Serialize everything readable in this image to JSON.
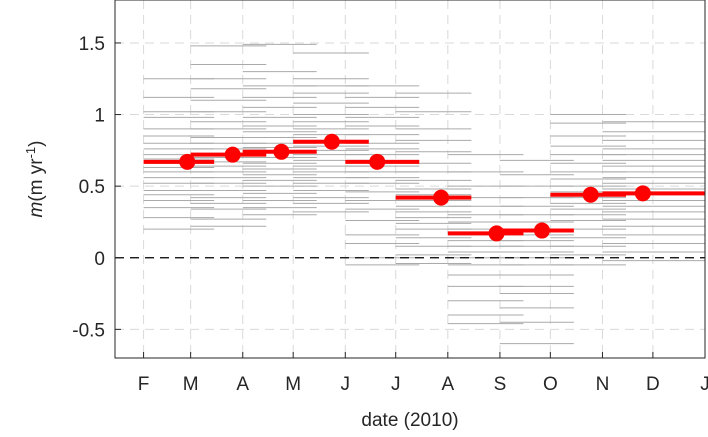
{
  "chart_data": {
    "type": "scatter",
    "xlabel": "date (2010)",
    "ylabel_var": "m",
    "ylabel_units": "(m yr",
    "ylabel_exp": "-1",
    "ylabel_close": ")",
    "ylim": [
      -0.7,
      1.8
    ],
    "yticks": [
      -0.5,
      0,
      0.5,
      1,
      1.5
    ],
    "ytick_labels": [
      "-0.5",
      "0",
      "0.5",
      "1",
      "1.5"
    ],
    "xlim": [
      "2010-01-15",
      "2011-01-01"
    ],
    "xticks": [
      "2010-02-01",
      "2010-03-01",
      "2010-04-01",
      "2010-05-01",
      "2010-06-01",
      "2010-07-01",
      "2010-08-01",
      "2010-09-01",
      "2010-10-01",
      "2010-11-01",
      "2010-12-01",
      "2011-01-01"
    ],
    "xtick_labels": [
      "F",
      "M",
      "A",
      "M",
      "J",
      "J",
      "A",
      "S",
      "O",
      "N",
      "D",
      "J"
    ],
    "grid": true,
    "zero_line": 0,
    "colors": {
      "mean": "#ff0000",
      "background": "#aaaaaa",
      "grid": "#d9d9d9"
    },
    "means": [
      {
        "x": "2010-02-27",
        "y": 0.67,
        "x_start": "2010-02-01",
        "x_end": "2010-03-15"
      },
      {
        "x": "2010-03-26",
        "y": 0.72,
        "x_start": "2010-03-01",
        "x_end": "2010-04-15"
      },
      {
        "x": "2010-04-24",
        "y": 0.74,
        "x_start": "2010-04-01",
        "x_end": "2010-05-15"
      },
      {
        "x": "2010-05-24",
        "y": 0.81,
        "x_start": "2010-05-01",
        "x_end": "2010-06-15"
      },
      {
        "x": "2010-06-20",
        "y": 0.67,
        "x_start": "2010-06-01",
        "x_end": "2010-07-15"
      },
      {
        "x": "2010-07-28",
        "y": 0.42,
        "x_start": "2010-07-01",
        "x_end": "2010-08-15"
      },
      {
        "x": "2010-08-30",
        "y": 0.17,
        "x_start": "2010-08-01",
        "x_end": "2010-09-15"
      },
      {
        "x": "2010-09-26",
        "y": 0.19,
        "x_start": "2010-09-01",
        "x_end": "2010-10-15"
      },
      {
        "x": "2010-10-25",
        "y": 0.44,
        "x_start": "2010-10-01",
        "x_end": "2010-11-15"
      },
      {
        "x": "2010-11-25",
        "y": 0.45,
        "x_start": "2010-11-01",
        "x_end": "2011-01-01"
      }
    ],
    "individual_segments": [
      {
        "x_start": "2010-02-01",
        "x_end": "2010-03-15",
        "y": [
          1.25,
          1.12,
          1.02,
          0.98,
          0.9,
          0.85,
          0.8,
          0.76,
          0.72,
          0.69,
          0.66,
          0.63,
          0.6,
          0.56,
          0.52,
          0.47,
          0.44,
          0.4,
          0.35,
          0.28,
          0.2
        ]
      },
      {
        "x_start": "2010-03-01",
        "x_end": "2010-04-15",
        "y": [
          1.48,
          1.35,
          1.25,
          1.18,
          1.1,
          1.02,
          0.95,
          0.9,
          0.84,
          0.8,
          0.76,
          0.73,
          0.7,
          0.67,
          0.64,
          0.6,
          0.56,
          0.52,
          0.47,
          0.42,
          0.38,
          0.34,
          0.27,
          0.22
        ]
      },
      {
        "x_start": "2010-04-01",
        "x_end": "2010-05-15",
        "y": [
          1.49,
          1.3,
          1.2,
          1.12,
          1.05,
          0.98,
          0.92,
          0.88,
          0.84,
          0.8,
          0.77,
          0.74,
          0.7,
          0.66,
          0.62,
          0.58,
          0.54,
          0.5,
          0.45,
          0.4,
          0.35,
          0.3
        ]
      },
      {
        "x_start": "2010-05-01",
        "x_end": "2010-06-15",
        "y": [
          1.43,
          1.25,
          1.2,
          1.15,
          1.08,
          1.0,
          0.95,
          0.9,
          0.86,
          0.82,
          0.78,
          0.75,
          0.72,
          0.68,
          0.64,
          0.6,
          0.56,
          0.52,
          0.47,
          0.42,
          0.38,
          0.32
        ]
      },
      {
        "x_start": "2010-06-01",
        "x_end": "2010-07-15",
        "y": [
          1.2,
          1.12,
          1.05,
          0.98,
          0.92,
          0.86,
          0.8,
          0.76,
          0.72,
          0.68,
          0.64,
          0.6,
          0.56,
          0.52,
          0.46,
          0.4,
          0.34,
          0.26,
          0.16,
          0.1,
          0.0,
          -0.05
        ]
      },
      {
        "x_start": "2010-07-01",
        "x_end": "2010-08-15",
        "y": [
          1.15,
          1.02,
          0.9,
          0.82,
          0.74,
          0.66,
          0.6,
          0.54,
          0.48,
          0.44,
          0.4,
          0.36,
          0.32,
          0.28,
          0.24,
          0.2,
          0.14,
          0.08,
          0.02,
          -0.04
        ]
      },
      {
        "x_start": "2010-08-01",
        "x_end": "2010-09-15",
        "y": [
          0.72,
          0.6,
          0.5,
          0.42,
          0.36,
          0.3,
          0.25,
          0.2,
          0.16,
          0.12,
          0.08,
          0.04,
          0.0,
          -0.05,
          -0.12,
          -0.2,
          -0.3,
          -0.4,
          -0.46
        ]
      },
      {
        "x_start": "2010-09-01",
        "x_end": "2010-10-15",
        "y": [
          0.68,
          0.58,
          0.5,
          0.42,
          0.36,
          0.3,
          0.25,
          0.2,
          0.16,
          0.12,
          0.08,
          0.04,
          0.0,
          -0.05,
          -0.12,
          -0.2,
          -0.25,
          -0.35,
          -0.45,
          -0.6
        ]
      },
      {
        "x_start": "2010-10-01",
        "x_end": "2010-11-15",
        "y": [
          1.0,
          0.94,
          0.85,
          0.78,
          0.72,
          0.66,
          0.6,
          0.55,
          0.5,
          0.46,
          0.42,
          0.38,
          0.34,
          0.3,
          0.26,
          0.2,
          0.14,
          0.08,
          0.02,
          -0.05
        ]
      },
      {
        "x_start": "2010-11-01",
        "x_end": "2011-01-01",
        "y": [
          0.95,
          0.88,
          0.82,
          0.76,
          0.72,
          0.68,
          0.64,
          0.6,
          0.56,
          0.52,
          0.48,
          0.44,
          0.4,
          0.36,
          0.32,
          0.27,
          0.22,
          0.16,
          0.1,
          0.04,
          -0.02
        ]
      }
    ]
  }
}
